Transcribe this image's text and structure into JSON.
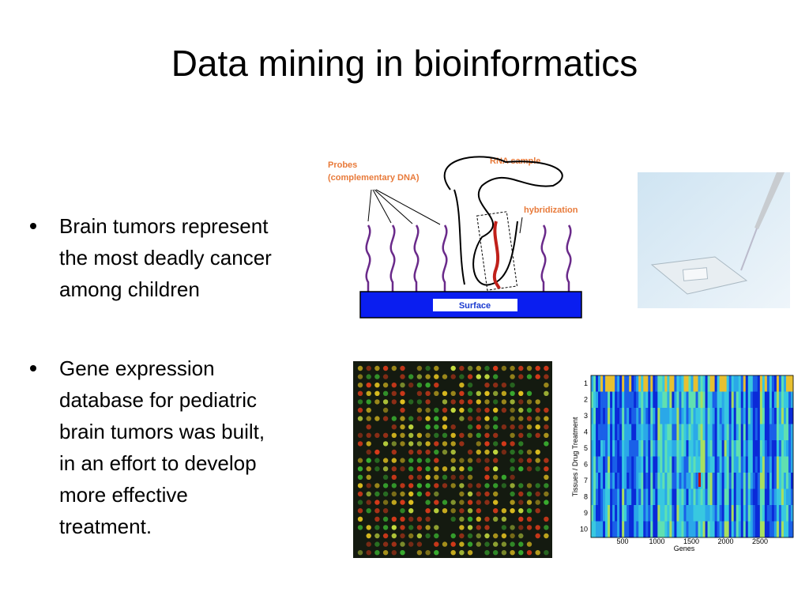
{
  "header": {
    "title": "Data mining in bioinformatics"
  },
  "bullets": [
    {
      "lines": [
        "Brain tumors represent",
        "the most deadly cancer",
        "among children"
      ]
    },
    {
      "lines": [
        "Gene expression",
        "database for pediatric",
        "brain tumors was built,",
        "in an effort to develop",
        "more effective",
        "treatment."
      ]
    }
  ],
  "diagram": {
    "probes": [
      "Probes",
      "(complementary DNA)"
    ],
    "rna": "RNA sample",
    "hybridization": "hybridization",
    "surface": "Surface"
  },
  "heatmap": {
    "rows": [
      1,
      2,
      3,
      4,
      5,
      6,
      7,
      8,
      9,
      10
    ],
    "columns": [
      500,
      1000,
      1500,
      2000,
      2500
    ],
    "x_label": "Genes",
    "y_label": "Tissues / Drug Treatment"
  }
}
